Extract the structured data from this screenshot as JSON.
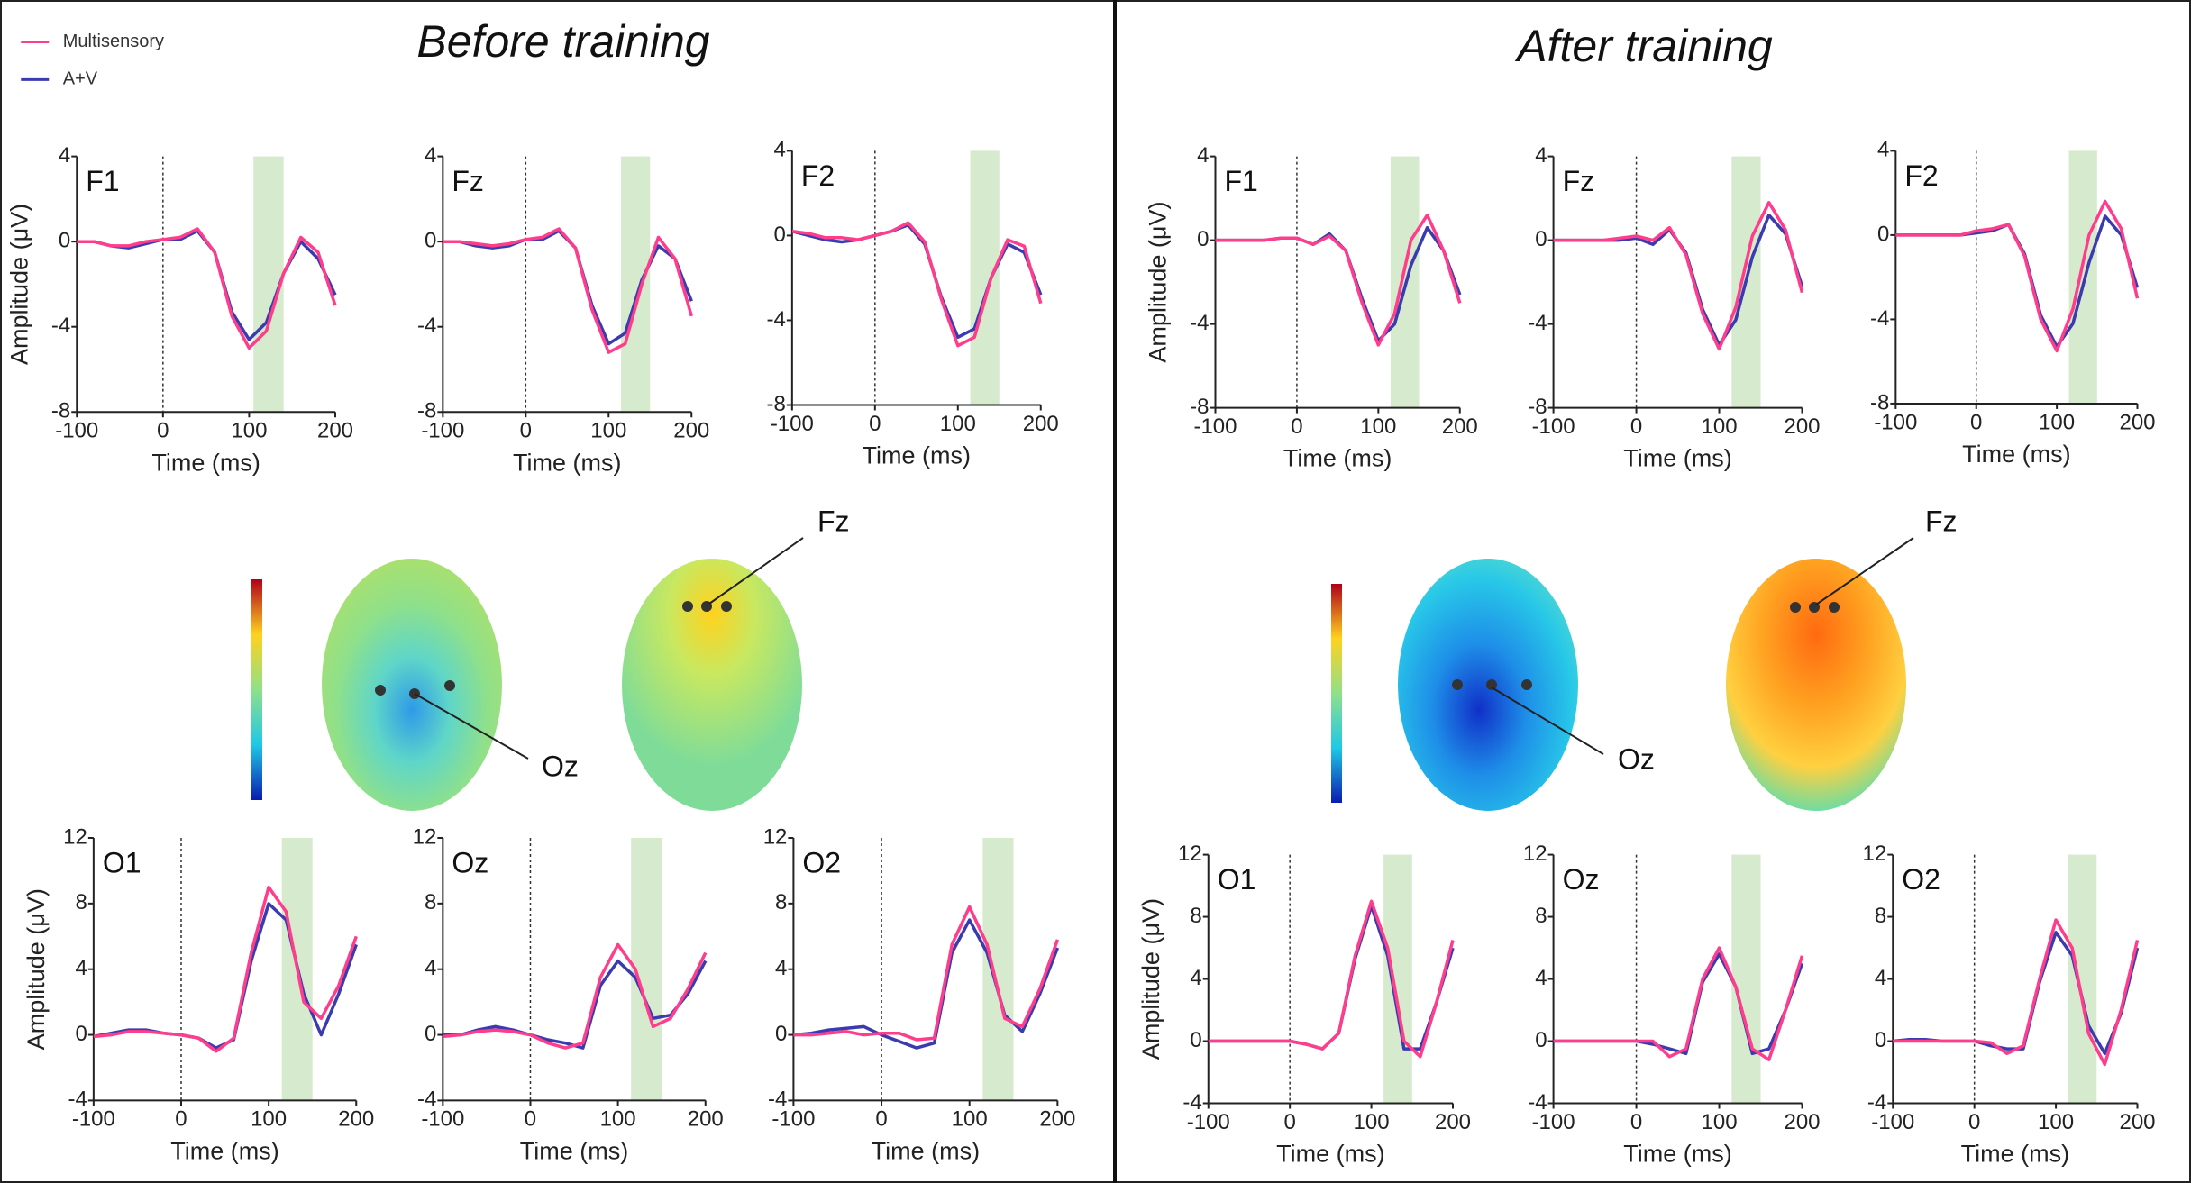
{
  "panels": [
    {
      "title": "Before training"
    },
    {
      "title": "After training"
    }
  ],
  "annotations": [
    "Fz",
    "Oz",
    "Fz",
    "Oz"
  ],
  "chart_data": [
    {
      "type": "line",
      "title": "F1",
      "xlabel": "Time (ms)",
      "ylabel": "Amplitude (μV)",
      "x": [
        -100,
        -80,
        -60,
        -40,
        -20,
        0,
        20,
        40,
        60,
        80,
        100,
        120,
        140,
        160,
        180,
        200
      ],
      "xlim": [
        -100,
        200
      ],
      "xticks": [
        -100,
        0,
        100,
        200
      ],
      "ylim": [
        -8,
        4
      ],
      "yticks": [
        -8,
        -4,
        0,
        4
      ],
      "window": [
        105,
        140
      ],
      "series": [
        {
          "name": "Multisensory",
          "color": "#ff3d8b",
          "values": [
            0,
            0,
            -0.2,
            -0.2,
            0,
            0.1,
            0.2,
            0.6,
            -0.5,
            -3.5,
            -5.0,
            -4.2,
            -1.5,
            0.2,
            -0.5,
            -3.0
          ]
        },
        {
          "name": "A+V",
          "color": "#3b3bb0",
          "values": [
            0,
            0,
            -0.2,
            -0.3,
            -0.1,
            0.1,
            0.1,
            0.5,
            -0.5,
            -3.3,
            -4.6,
            -3.8,
            -1.5,
            0,
            -0.8,
            -2.5
          ]
        }
      ]
    },
    {
      "type": "line",
      "title": "Fz",
      "xlabel": "Time (ms)",
      "x": [
        -100,
        -80,
        -60,
        -40,
        -20,
        0,
        20,
        40,
        60,
        80,
        100,
        120,
        140,
        160,
        180,
        200
      ],
      "xlim": [
        -100,
        200
      ],
      "xticks": [
        -100,
        0,
        100,
        200
      ],
      "ylim": [
        -8,
        4
      ],
      "yticks": [
        -8,
        -4,
        0,
        4
      ],
      "window": [
        115,
        150
      ],
      "series": [
        {
          "name": "Multisensory",
          "color": "#ff3d8b",
          "values": [
            0,
            0,
            -0.1,
            -0.2,
            -0.1,
            0.1,
            0.2,
            0.6,
            -0.3,
            -3.2,
            -5.2,
            -4.8,
            -2.0,
            0.2,
            -0.8,
            -3.5
          ]
        },
        {
          "name": "A+V",
          "color": "#3b3bb0",
          "values": [
            0,
            0,
            -0.2,
            -0.3,
            -0.2,
            0.1,
            0.1,
            0.5,
            -0.3,
            -3.0,
            -4.8,
            -4.3,
            -1.8,
            -0.2,
            -0.8,
            -2.8
          ]
        }
      ]
    },
    {
      "type": "line",
      "title": "F2",
      "xlabel": "Time (ms)",
      "x": [
        -100,
        -80,
        -60,
        -40,
        -20,
        0,
        20,
        40,
        60,
        80,
        100,
        120,
        140,
        160,
        180,
        200
      ],
      "xlim": [
        -100,
        200
      ],
      "xticks": [
        -100,
        0,
        100,
        200
      ],
      "ylim": [
        -8,
        4
      ],
      "yticks": [
        -8,
        -4,
        0,
        4
      ],
      "window": [
        115,
        150
      ],
      "series": [
        {
          "name": "Multisensory",
          "color": "#ff3d8b",
          "values": [
            0.2,
            0.1,
            -0.1,
            -0.1,
            -0.2,
            0,
            0.2,
            0.6,
            -0.3,
            -3.0,
            -5.2,
            -4.8,
            -2.0,
            -0.2,
            -0.5,
            -3.2
          ]
        },
        {
          "name": "A+V",
          "color": "#3b3bb0",
          "values": [
            0.2,
            0,
            -0.2,
            -0.3,
            -0.2,
            0,
            0.2,
            0.5,
            -0.4,
            -2.9,
            -4.8,
            -4.4,
            -2.0,
            -0.4,
            -0.8,
            -2.8
          ]
        }
      ]
    },
    {
      "type": "line",
      "title": "F1",
      "xlabel": "Time (ms)",
      "ylabel": "Amplitude (μV)",
      "x": [
        -100,
        -80,
        -60,
        -40,
        -20,
        0,
        20,
        40,
        60,
        80,
        100,
        120,
        140,
        160,
        180,
        200
      ],
      "xlim": [
        -100,
        200
      ],
      "xticks": [
        -100,
        0,
        100,
        200
      ],
      "ylim": [
        -8,
        4
      ],
      "yticks": [
        -8,
        -4,
        0,
        4
      ],
      "window": [
        115,
        150
      ],
      "series": [
        {
          "name": "Multisensory",
          "color": "#ff3d8b",
          "values": [
            0,
            0,
            0,
            0,
            0.1,
            0.1,
            -0.2,
            0.2,
            -0.5,
            -3.0,
            -5.0,
            -3.5,
            0,
            1.2,
            -0.5,
            -3.0
          ]
        },
        {
          "name": "A+V",
          "color": "#3b3bb0",
          "values": [
            0,
            0,
            0,
            0,
            0.1,
            0.1,
            -0.2,
            0.3,
            -0.5,
            -2.8,
            -4.8,
            -4.0,
            -1.2,
            0.6,
            -0.5,
            -2.6
          ]
        }
      ]
    },
    {
      "type": "line",
      "title": "Fz",
      "xlabel": "Time (ms)",
      "x": [
        -100,
        -80,
        -60,
        -40,
        -20,
        0,
        20,
        40,
        60,
        80,
        100,
        120,
        140,
        160,
        180,
        200
      ],
      "xlim": [
        -100,
        200
      ],
      "xticks": [
        -100,
        0,
        100,
        200
      ],
      "ylim": [
        -8,
        4
      ],
      "yticks": [
        -8,
        -4,
        0,
        4
      ],
      "window": [
        115,
        150
      ],
      "series": [
        {
          "name": "Multisensory",
          "color": "#ff3d8b",
          "values": [
            0,
            0,
            0,
            0,
            0.1,
            0.2,
            0,
            0.6,
            -0.7,
            -3.5,
            -5.2,
            -3.2,
            0.2,
            1.8,
            0.5,
            -2.5
          ]
        },
        {
          "name": "A+V",
          "color": "#3b3bb0",
          "values": [
            0,
            0,
            0,
            0,
            0,
            0.1,
            -0.2,
            0.5,
            -0.6,
            -3.3,
            -5.0,
            -3.8,
            -0.8,
            1.2,
            0.3,
            -2.2
          ]
        }
      ]
    },
    {
      "type": "line",
      "title": "F2",
      "xlabel": "Time (ms)",
      "x": [
        -100,
        -80,
        -60,
        -40,
        -20,
        0,
        20,
        40,
        60,
        80,
        100,
        120,
        140,
        160,
        180,
        200
      ],
      "xlim": [
        -100,
        200
      ],
      "xticks": [
        -100,
        0,
        100,
        200
      ],
      "ylim": [
        -8,
        4
      ],
      "yticks": [
        -8,
        -4,
        0,
        4
      ],
      "window": [
        115,
        150
      ],
      "series": [
        {
          "name": "Multisensory",
          "color": "#ff3d8b",
          "values": [
            0,
            0,
            0,
            0,
            0,
            0.2,
            0.3,
            0.5,
            -1.0,
            -4.0,
            -5.5,
            -3.5,
            0,
            1.6,
            0.3,
            -3.0
          ]
        },
        {
          "name": "A+V",
          "color": "#3b3bb0",
          "values": [
            0,
            0,
            0,
            0,
            0,
            0.1,
            0.2,
            0.5,
            -0.9,
            -3.8,
            -5.3,
            -4.2,
            -1.3,
            0.9,
            0,
            -2.5
          ]
        }
      ]
    },
    {
      "type": "line",
      "title": "O1",
      "xlabel": "Time (ms)",
      "ylabel": "Amplitude (μV)",
      "x": [
        -100,
        -80,
        -60,
        -40,
        -20,
        0,
        20,
        40,
        60,
        80,
        100,
        120,
        140,
        160,
        180,
        200
      ],
      "xlim": [
        -100,
        200
      ],
      "xticks": [
        -100,
        0,
        100,
        200
      ],
      "ylim": [
        -4,
        12
      ],
      "yticks": [
        -4,
        0,
        4,
        8,
        12
      ],
      "window": [
        115,
        150
      ],
      "series": [
        {
          "name": "Multisensory",
          "color": "#ff3d8b",
          "values": [
            -0.1,
            0,
            0.2,
            0.2,
            0.1,
            0,
            -0.2,
            -1.0,
            -0.2,
            5.0,
            9.0,
            7.5,
            2.0,
            1.0,
            3.0,
            6.0
          ]
        },
        {
          "name": "A+V",
          "color": "#3b3bb0",
          "values": [
            -0.1,
            0.1,
            0.3,
            0.3,
            0.1,
            0,
            -0.2,
            -0.8,
            -0.3,
            4.5,
            8.0,
            7.0,
            2.5,
            0,
            2.5,
            5.5
          ]
        }
      ]
    },
    {
      "type": "line",
      "title": "Oz",
      "xlabel": "Time (ms)",
      "x": [
        -100,
        -80,
        -60,
        -40,
        -20,
        0,
        20,
        40,
        60,
        80,
        100,
        120,
        140,
        160,
        180,
        200
      ],
      "xlim": [
        -100,
        200
      ],
      "xticks": [
        -100,
        0,
        100,
        200
      ],
      "ylim": [
        -4,
        12
      ],
      "yticks": [
        -4,
        0,
        4,
        8,
        12
      ],
      "window": [
        115,
        150
      ],
      "series": [
        {
          "name": "Multisensory",
          "color": "#ff3d8b",
          "values": [
            -0.1,
            0,
            0.2,
            0.3,
            0.2,
            0,
            -0.5,
            -0.8,
            -0.5,
            3.5,
            5.5,
            4.0,
            0.5,
            1.0,
            2.8,
            5.0
          ]
        },
        {
          "name": "A+V",
          "color": "#3b3bb0",
          "values": [
            0,
            0,
            0.3,
            0.5,
            0.3,
            0,
            -0.3,
            -0.5,
            -0.8,
            3.0,
            4.5,
            3.5,
            1.0,
            1.2,
            2.5,
            4.5
          ]
        }
      ]
    },
    {
      "type": "line",
      "title": "O2",
      "xlabel": "Time (ms)",
      "x": [
        -100,
        -80,
        -60,
        -40,
        -20,
        0,
        20,
        40,
        60,
        80,
        100,
        120,
        140,
        160,
        180,
        200
      ],
      "xlim": [
        -100,
        200
      ],
      "xticks": [
        -100,
        0,
        100,
        200
      ],
      "ylim": [
        -4,
        12
      ],
      "yticks": [
        -4,
        0,
        4,
        8,
        12
      ],
      "window": [
        115,
        150
      ],
      "series": [
        {
          "name": "Multisensory",
          "color": "#ff3d8b",
          "values": [
            0,
            0,
            0.1,
            0.2,
            0,
            0.1,
            0.1,
            -0.3,
            -0.2,
            5.5,
            7.8,
            5.5,
            1.0,
            0.5,
            2.8,
            5.8
          ]
        },
        {
          "name": "A+V",
          "color": "#3b3bb0",
          "values": [
            0,
            0.1,
            0.3,
            0.4,
            0.5,
            0,
            -0.4,
            -0.8,
            -0.5,
            5.0,
            7.0,
            5.0,
            1.2,
            0.2,
            2.5,
            5.3
          ]
        }
      ]
    },
    {
      "type": "line",
      "title": "O1",
      "xlabel": "Time (ms)",
      "ylabel": "Amplitude (μV)",
      "x": [
        -100,
        -80,
        -60,
        -40,
        -20,
        0,
        20,
        40,
        60,
        80,
        100,
        120,
        140,
        160,
        180,
        200
      ],
      "xlim": [
        -100,
        200
      ],
      "xticks": [
        -100,
        0,
        100,
        200
      ],
      "ylim": [
        -4,
        12
      ],
      "yticks": [
        -4,
        0,
        4,
        8,
        12
      ],
      "window": [
        115,
        150
      ],
      "series": [
        {
          "name": "Multisensory",
          "color": "#ff3d8b",
          "values": [
            0,
            0,
            0,
            0,
            0,
            0,
            -0.2,
            -0.5,
            0.5,
            5.5,
            9.0,
            6.0,
            0,
            -1.0,
            2.5,
            6.5
          ]
        },
        {
          "name": "A+V",
          "color": "#3b3bb0",
          "values": [
            0,
            0,
            0,
            0,
            0,
            0,
            -0.2,
            -0.5,
            0.5,
            5.3,
            8.7,
            5.5,
            -0.5,
            -0.5,
            2.5,
            6.0
          ]
        }
      ]
    },
    {
      "type": "line",
      "title": "Oz",
      "xlabel": "Time (ms)",
      "x": [
        -100,
        -80,
        -60,
        -40,
        -20,
        0,
        20,
        40,
        60,
        80,
        100,
        120,
        140,
        160,
        180,
        200
      ],
      "xlim": [
        -100,
        200
      ],
      "xticks": [
        -100,
        0,
        100,
        200
      ],
      "ylim": [
        -4,
        12
      ],
      "yticks": [
        -4,
        0,
        4,
        8,
        12
      ],
      "window": [
        115,
        150
      ],
      "series": [
        {
          "name": "Multisensory",
          "color": "#ff3d8b",
          "values": [
            0,
            0,
            0,
            0,
            0,
            0,
            0,
            -1.0,
            -0.5,
            4.0,
            6.0,
            3.5,
            -0.5,
            -1.2,
            2.0,
            5.5
          ]
        },
        {
          "name": "A+V",
          "color": "#3b3bb0",
          "values": [
            0,
            0,
            0,
            0,
            0,
            0,
            -0.2,
            -0.5,
            -0.8,
            3.8,
            5.6,
            3.5,
            -0.8,
            -0.5,
            2.0,
            5.0
          ]
        }
      ]
    },
    {
      "type": "line",
      "title": "O2",
      "xlabel": "Time (ms)",
      "x": [
        -100,
        -80,
        -60,
        -40,
        -20,
        0,
        20,
        40,
        60,
        80,
        100,
        120,
        140,
        160,
        180,
        200
      ],
      "xlim": [
        -100,
        200
      ],
      "xticks": [
        -100,
        0,
        100,
        200
      ],
      "ylim": [
        -4,
        12
      ],
      "yticks": [
        -4,
        0,
        4,
        8,
        12
      ],
      "window": [
        115,
        150
      ],
      "series": [
        {
          "name": "Multisensory",
          "color": "#ff3d8b",
          "values": [
            0,
            0,
            0,
            0,
            0,
            0,
            -0.1,
            -0.8,
            -0.3,
            4.0,
            7.8,
            6.0,
            0.5,
            -1.5,
            2.0,
            6.5
          ]
        },
        {
          "name": "A+V",
          "color": "#3b3bb0",
          "values": [
            0,
            0.1,
            0.1,
            0,
            0,
            0,
            -0.3,
            -0.5,
            -0.5,
            3.8,
            7.0,
            5.5,
            1.0,
            -0.8,
            1.8,
            6.0
          ]
        }
      ]
    }
  ]
}
